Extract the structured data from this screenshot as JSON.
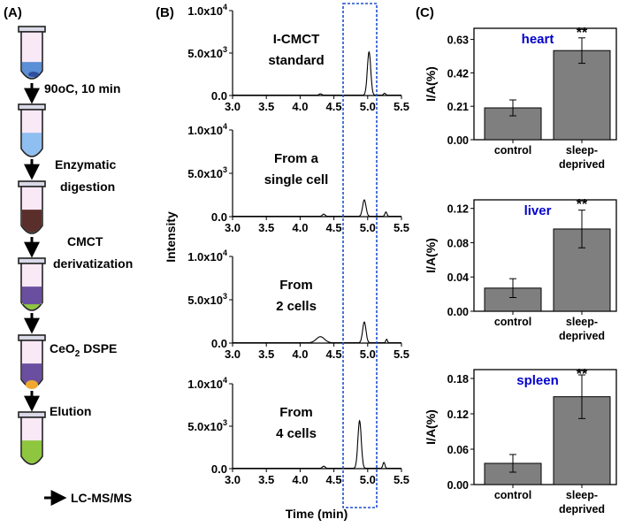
{
  "panel_a": {
    "label": "(A)",
    "steps": [
      "90oC, 10 min",
      "Enzymatic digestion",
      "CMCT derivatization",
      "CeO2 DSPE",
      "Elution"
    ],
    "final_label": "LC-MS/MS",
    "tube_colors": [
      "#5b8fd6",
      "#8fbff0",
      "#5a2e2a",
      "#6a4fa0",
      "#6a4fa0",
      "#8ec63f"
    ]
  },
  "panel_b": {
    "label": "(B)",
    "y_axis_title": "Intensity",
    "x_axis_title": "Time (min)",
    "x_ticks": [
      "3.0",
      "3.5",
      "4.0",
      "4.5",
      "5.0",
      "5.5"
    ],
    "y_ticks": [
      "0.0",
      "5.0x103",
      "1.0x104"
    ],
    "highlight_color": "#1f4fd0",
    "traces": [
      {
        "title": "I-CMCT standard",
        "peak_time": 5.02,
        "peak_height": 5100
      },
      {
        "title": "From a single cell",
        "peak_time": 4.95,
        "peak_height": 1900
      },
      {
        "title": "From 2 cells",
        "peak_time": 4.95,
        "peak_height": 2400
      },
      {
        "title": "From 4 cells",
        "peak_time": 4.88,
        "peak_height": 5600
      }
    ]
  },
  "panel_c": {
    "label": "(C)",
    "bar_color": "#7f7f7f",
    "tissue_color": "#0000cc"
  },
  "chart_data": [
    {
      "type": "bar",
      "title": "heart",
      "ylabel": "I/A(%)",
      "categories": [
        "control",
        "sleep-deprived"
      ],
      "values": [
        0.2,
        0.56
      ],
      "errors": [
        0.05,
        0.08
      ],
      "ylim": [
        0,
        0.7
      ],
      "yticks": [
        "0.00",
        "0.21",
        "0.42",
        "0.63"
      ],
      "significance": "**"
    },
    {
      "type": "bar",
      "title": "liver",
      "ylabel": "I/A(%)",
      "categories": [
        "control",
        "sleep-deprived"
      ],
      "values": [
        0.027,
        0.096
      ],
      "errors": [
        0.011,
        0.022
      ],
      "ylim": [
        0,
        0.13
      ],
      "yticks": [
        "0.00",
        "0.04",
        "0.08",
        "0.12"
      ],
      "significance": "**"
    },
    {
      "type": "bar",
      "title": "spleen",
      "ylabel": "I/A(%)",
      "categories": [
        "control",
        "sleep-deprived"
      ],
      "values": [
        0.036,
        0.149
      ],
      "errors": [
        0.015,
        0.037
      ],
      "ylim": [
        0,
        0.195
      ],
      "yticks": [
        "0.00",
        "0.06",
        "0.12",
        "0.18"
      ],
      "significance": "**"
    }
  ]
}
